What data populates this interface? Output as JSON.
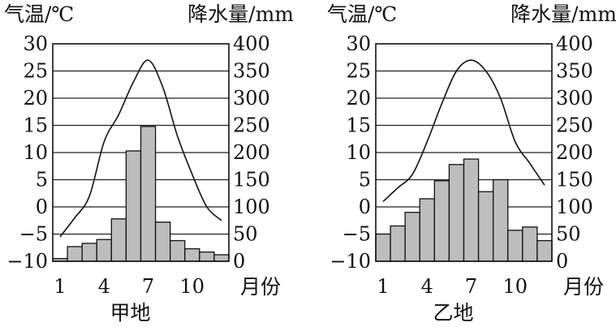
{
  "chart_data": [
    {
      "type": "bar+line",
      "title": "",
      "caption": "甲地",
      "ylabel_left": "气温/℃",
      "ylabel_right": "降水量/mm",
      "xlabel": "月份",
      "x_ticks": [
        "1",
        "4",
        "7",
        "10"
      ],
      "months": [
        1,
        2,
        3,
        4,
        5,
        6,
        7,
        8,
        9,
        10,
        11,
        12
      ],
      "temperature": [
        -5.5,
        -2,
        2,
        12,
        17,
        23,
        27,
        22,
        13,
        6,
        0,
        -2.5
      ],
      "precipitation": [
        5,
        27,
        33,
        40,
        78,
        203,
        248,
        72,
        38,
        23,
        17,
        12
      ],
      "ylim_left": [
        -10,
        30
      ],
      "ylim_right": [
        0,
        400
      ],
      "yticks_left": [
        "30",
        "25",
        "20",
        "15",
        "10",
        "5",
        "0",
        "−5",
        "−10"
      ],
      "yticks_right": [
        "400",
        "350",
        "300",
        "250",
        "200",
        "150",
        "100",
        "50",
        "0"
      ],
      "grid": true
    },
    {
      "type": "bar+line",
      "title": "",
      "caption": "乙地",
      "ylabel_left": "气温/℃",
      "ylabel_right": "降水量/mm",
      "xlabel": "月份",
      "x_ticks": [
        "1",
        "4",
        "7",
        "10"
      ],
      "months": [
        1,
        2,
        3,
        4,
        5,
        6,
        7,
        8,
        9,
        10,
        11,
        12
      ],
      "temperature": [
        1,
        3.5,
        6,
        12,
        19,
        25,
        27,
        25,
        20,
        12,
        8,
        4
      ],
      "precipitation": [
        50,
        65,
        90,
        115,
        148,
        178,
        188,
        128,
        150,
        57,
        63,
        38
      ],
      "ylim_left": [
        -10,
        30
      ],
      "ylim_right": [
        0,
        400
      ],
      "yticks_left": [
        "30",
        "25",
        "20",
        "15",
        "10",
        "5",
        "0",
        "−5",
        "−10"
      ],
      "yticks_right": [
        "400",
        "350",
        "300",
        "250",
        "200",
        "150",
        "100",
        "50",
        "0"
      ],
      "grid": true
    }
  ]
}
